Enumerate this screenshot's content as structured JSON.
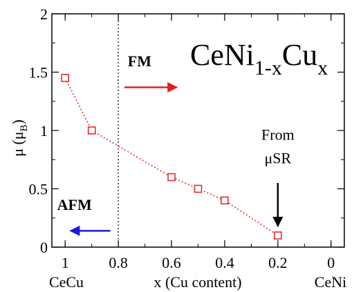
{
  "chart_data": {
    "type": "scatter",
    "title": "",
    "formula": {
      "base1": "CeNi",
      "sub1": "1-x",
      "base2": "Cu",
      "sub2": "x"
    },
    "xlabel": "x (Cu content)",
    "ylabel": {
      "base": "μ (μ",
      "sub": "B",
      "close": ")"
    },
    "xlim": [
      1.05,
      -0.05
    ],
    "ylim": [
      0,
      2
    ],
    "x_ticks": [
      {
        "value": 1,
        "label": "1"
      },
      {
        "value": 0.8,
        "label": "0.8"
      },
      {
        "value": 0.6,
        "label": "0.6"
      },
      {
        "value": 0.4,
        "label": "0.4"
      },
      {
        "value": 0.2,
        "label": "0.2"
      },
      {
        "value": 0,
        "label": "0"
      }
    ],
    "y_ticks": [
      {
        "value": 0,
        "label": "0"
      },
      {
        "value": 0.5,
        "label": "0.5"
      },
      {
        "value": 1,
        "label": "1"
      },
      {
        "value": 1.5,
        "label": "1.5"
      },
      {
        "value": 2,
        "label": "2"
      }
    ],
    "x_end_labels": {
      "left": "CeCu",
      "right": "CeNi"
    },
    "series": [
      {
        "marker": "open-square",
        "line": "dotted",
        "color": "#e02020",
        "points": [
          {
            "x": 1.0,
            "y": 1.45
          },
          {
            "x": 0.9,
            "y": 1.0
          },
          {
            "x": 0.6,
            "y": 0.6
          },
          {
            "x": 0.5,
            "y": 0.5
          },
          {
            "x": 0.4,
            "y": 0.4
          },
          {
            "x": 0.2,
            "y": 0.1
          }
        ]
      }
    ],
    "phase_boundary": {
      "x": 0.8,
      "style": "dotted",
      "color": "#000000"
    },
    "annotations": {
      "fm": {
        "text": "FM",
        "color": "#e02020",
        "x": 0.72,
        "y": 1.55,
        "arrow_to_x": 0.58,
        "arrow_y": 1.37
      },
      "afm": {
        "text": "AFM",
        "color": "#1a1ad8",
        "x": 0.965,
        "y": 0.32,
        "arrow_to_x": 0.98,
        "arrow_from_x": 0.83,
        "arrow_y": 0.14
      },
      "from_msr": {
        "lines": [
          "From",
          "μSR"
        ],
        "x": 0.2,
        "y_line1": 0.92,
        "y_line2": 0.72,
        "arrow_y_from": 0.55,
        "arrow_y_to": 0.18,
        "color": "#000000"
      }
    }
  }
}
